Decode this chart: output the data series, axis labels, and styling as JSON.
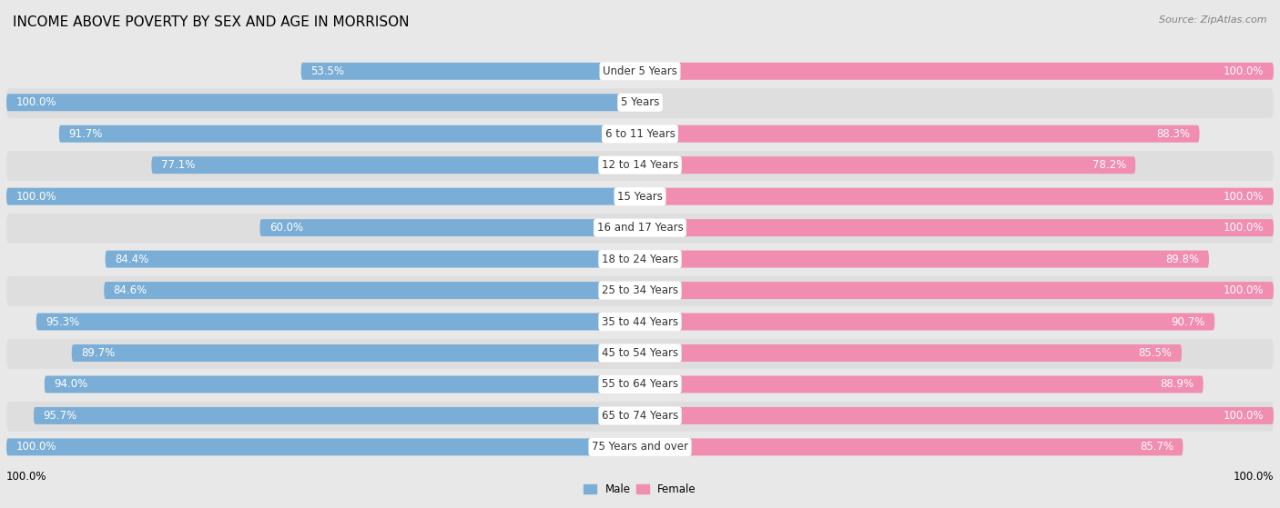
{
  "title": "INCOME ABOVE POVERTY BY SEX AND AGE IN MORRISON",
  "source": "Source: ZipAtlas.com",
  "categories": [
    "Under 5 Years",
    "5 Years",
    "6 to 11 Years",
    "12 to 14 Years",
    "15 Years",
    "16 and 17 Years",
    "18 to 24 Years",
    "25 to 34 Years",
    "35 to 44 Years",
    "45 to 54 Years",
    "55 to 64 Years",
    "65 to 74 Years",
    "75 Years and over"
  ],
  "male_values": [
    53.5,
    100.0,
    91.7,
    77.1,
    100.0,
    60.0,
    84.4,
    84.6,
    95.3,
    89.7,
    94.0,
    95.7,
    100.0
  ],
  "female_values": [
    100.0,
    0.0,
    88.3,
    78.2,
    100.0,
    100.0,
    89.8,
    100.0,
    90.7,
    85.5,
    88.9,
    100.0,
    85.7
  ],
  "male_color": "#7aaed6",
  "female_color": "#f08db0",
  "male_color_light": "#b8d4ea",
  "female_color_light": "#f7c0d5",
  "male_label": "Male",
  "female_label": "Female",
  "bg_color": "#e8e8e8",
  "row_bg_color": "#e0e0e0",
  "bar_bg_color": "#f5f5f5",
  "title_fontsize": 11,
  "label_fontsize": 8.5,
  "cat_fontsize": 8.5,
  "tick_fontsize": 8.5,
  "source_fontsize": 8,
  "xlim": [
    -100,
    100
  ]
}
